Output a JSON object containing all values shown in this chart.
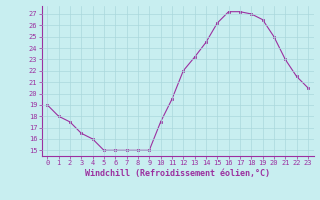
{
  "x": [
    0,
    1,
    2,
    3,
    4,
    5,
    6,
    7,
    8,
    9,
    10,
    11,
    12,
    13,
    14,
    15,
    16,
    17,
    18,
    19,
    20,
    21,
    22,
    23
  ],
  "y": [
    19,
    18,
    17.5,
    16.5,
    16,
    15,
    15,
    15,
    15,
    15,
    17.5,
    19.5,
    22,
    23.2,
    24.5,
    26.2,
    27.2,
    27.2,
    27,
    26.5,
    25,
    23,
    21.5,
    20.5
  ],
  "line_color": "#9b30a0",
  "marker": "s",
  "marker_size": 2.0,
  "bg_color": "#c8eef0",
  "grid_color": "#aad8dc",
  "xlabel": "Windchill (Refroidissement éolien,°C)",
  "ylim": [
    14.5,
    27.7
  ],
  "xlim": [
    -0.5,
    23.5
  ],
  "yticks": [
    15,
    16,
    17,
    18,
    19,
    20,
    21,
    22,
    23,
    24,
    25,
    26,
    27
  ],
  "xticks": [
    0,
    1,
    2,
    3,
    4,
    5,
    6,
    7,
    8,
    9,
    10,
    11,
    12,
    13,
    14,
    15,
    16,
    17,
    18,
    19,
    20,
    21,
    22,
    23
  ],
  "tick_color": "#9b30a0",
  "label_fontsize": 6.0,
  "tick_fontsize": 5.0,
  "spine_color": "#9b30a0",
  "line_width": 0.8
}
